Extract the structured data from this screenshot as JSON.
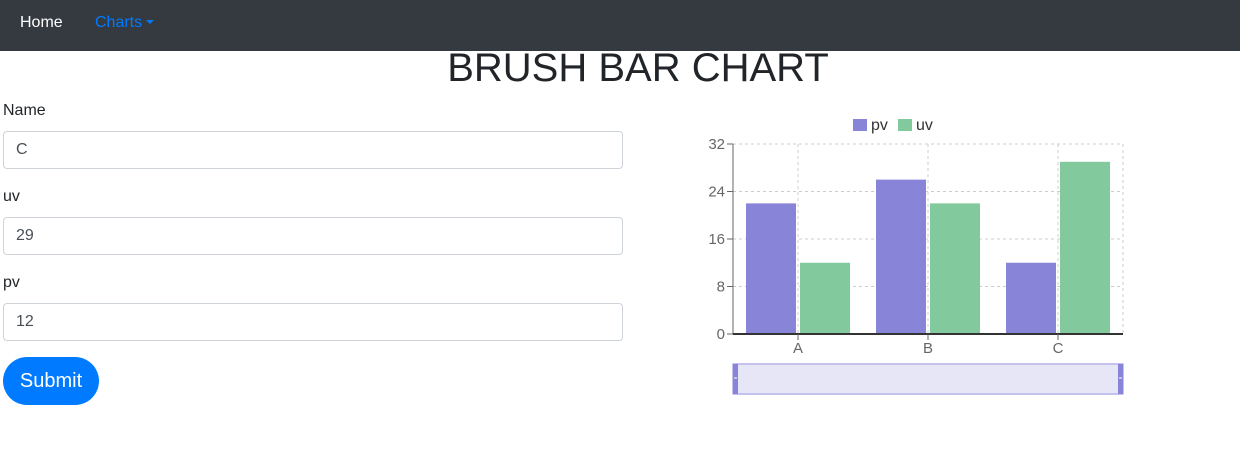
{
  "nav": {
    "home_label": "Home",
    "charts_label": "Charts"
  },
  "page": {
    "title": "BRUSH BAR CHART"
  },
  "form": {
    "name_label": "Name",
    "name_value": "C",
    "uv_label": "uv",
    "uv_value": "29",
    "pv_label": "pv",
    "pv_value": "12",
    "submit_label": "Submit"
  },
  "colors": {
    "pv": "#8884d8",
    "uv": "#82ca9d",
    "nav_bg": "#343a40",
    "accent": "#007bff"
  },
  "chart_data": {
    "type": "bar",
    "categories": [
      "A",
      "B",
      "C"
    ],
    "series": [
      {
        "name": "pv",
        "values": [
          22,
          26,
          12
        ],
        "color": "#8884d8"
      },
      {
        "name": "uv",
        "values": [
          12,
          22,
          29
        ],
        "color": "#82ca9d"
      }
    ],
    "ylim": [
      0,
      32
    ],
    "yticks": [
      "0",
      "8",
      "16",
      "24",
      "32"
    ],
    "grid": true,
    "legend": "top-center",
    "brush": true
  }
}
